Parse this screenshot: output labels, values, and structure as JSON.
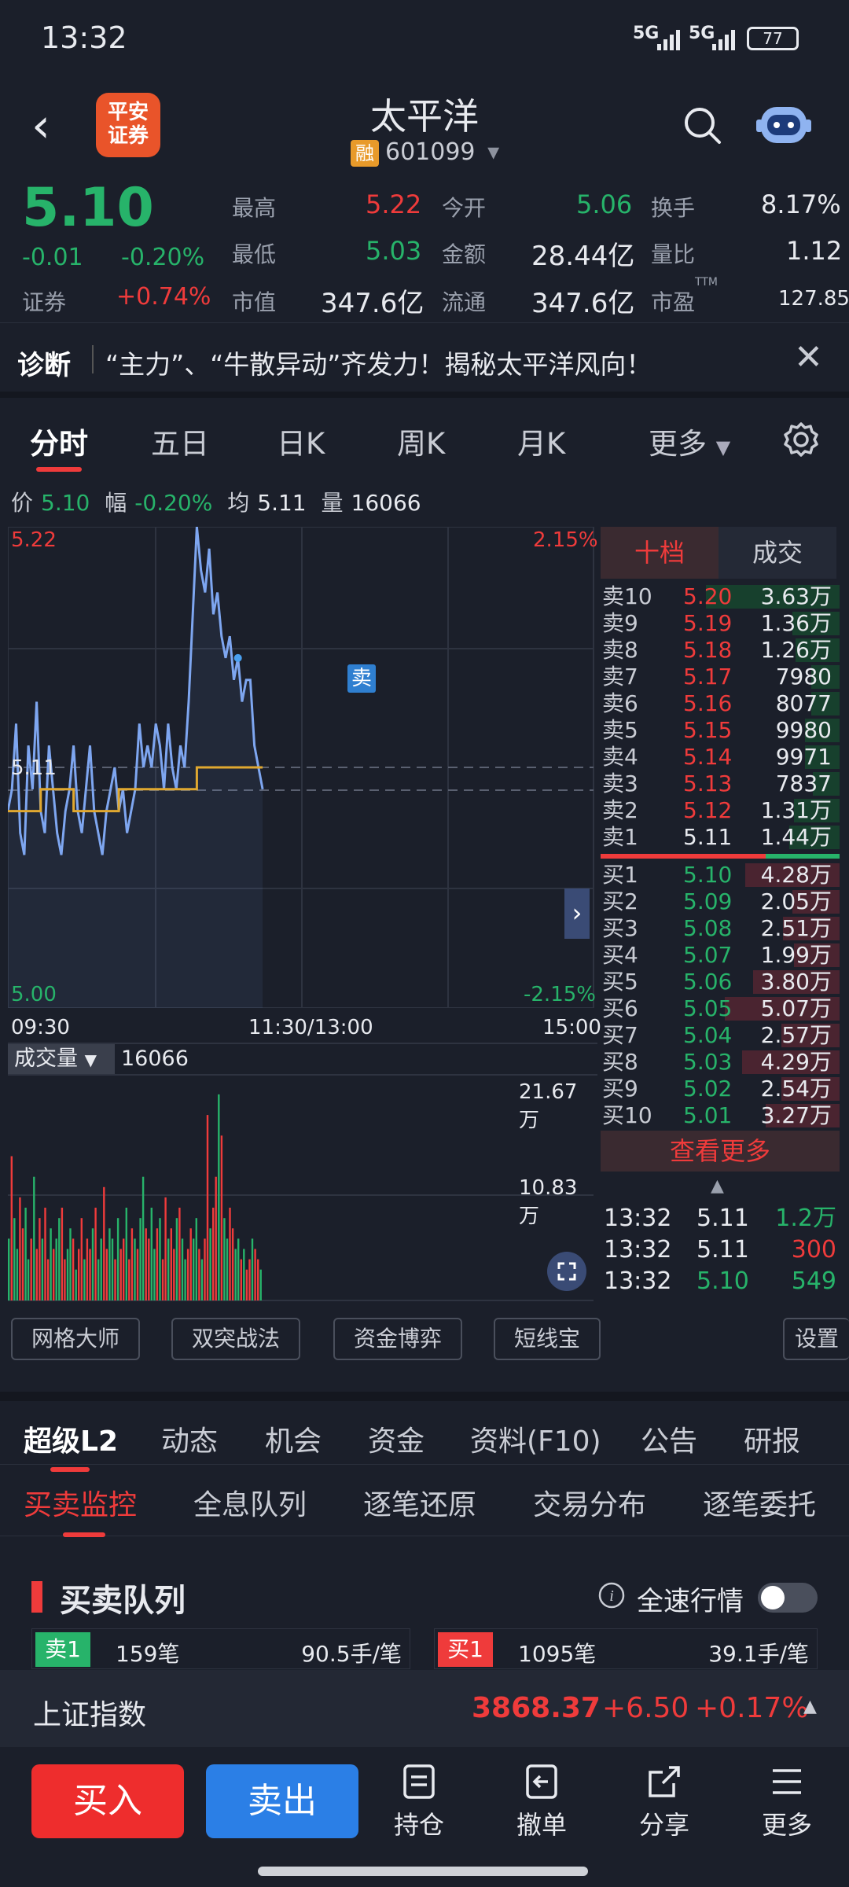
{
  "status": {
    "time": "13:32",
    "sig1": "5G",
    "sig2": "5G",
    "battery": "77"
  },
  "header": {
    "back": "‹",
    "broker_logo": "平安\n证券",
    "title": "太平洋",
    "margin_tag": "融",
    "code": "601099",
    "dropdown": "▾"
  },
  "quote": {
    "price": "5.10",
    "change": "-0.01",
    "change_pct": "-0.20%",
    "sector_label": "证券",
    "sector_pct": "+0.74%",
    "high_label": "最高",
    "high": "5.22",
    "open_label": "今开",
    "open": "5.06",
    "turnover_label": "换手",
    "turnover": "8.17%",
    "low_label": "最低",
    "low": "5.03",
    "amount_label": "金额",
    "amount": "28.44亿",
    "vol_ratio_label": "量比",
    "vol_ratio": "1.12",
    "mktcap_label": "市值",
    "mktcap": "347.6亿",
    "float_label": "流通",
    "float": "347.6亿",
    "pe_label": "市盈",
    "pe_sup": "TTM",
    "pe": "127.85"
  },
  "diag": {
    "label": "诊断",
    "text": "“主力”、“牛散异动”齐发力！揭秘太平洋风向！",
    "close": "✕"
  },
  "tabs": [
    "分时",
    "五日",
    "日K",
    "周K",
    "月K",
    "更多"
  ],
  "info": {
    "price_label": "价",
    "price": "5.10",
    "range_label": "幅",
    "range": "-0.20%",
    "avg_label": "均",
    "avg": "5.11",
    "vol_label": "量",
    "vol": "16066"
  },
  "chart": {
    "ymax": "5.22",
    "ymin": "5.00",
    "ymid": "5.11",
    "pct_max": "2.15%",
    "pct_min": "-2.15%",
    "t_start": "09:30",
    "t_mid": "11:30/13:00",
    "t_end": "15:00",
    "sell_marker": "卖",
    "vol_label": "成交量",
    "vol_value": "16066",
    "vol_max": "21.67万",
    "vol_mid": "10.83万",
    "colors": {
      "price": "#7ea6f0",
      "avg": "#e0a830",
      "up": "#ef3b3b",
      "down": "#27b36a"
    }
  },
  "chart_data": {
    "type": "line",
    "x_range": [
      "09:30",
      "15:00"
    ],
    "ylim": [
      5.0,
      5.22
    ],
    "series": [
      {
        "name": "价",
        "values": [
          5.09,
          5.1,
          5.13,
          5.08,
          5.07,
          5.12,
          5.1,
          5.14,
          5.09,
          5.08,
          5.12,
          5.1,
          5.08,
          5.07,
          5.09,
          5.1,
          5.12,
          5.09,
          5.08,
          5.1,
          5.12,
          5.09,
          5.08,
          5.07,
          5.09,
          5.1,
          5.11,
          5.09,
          5.1,
          5.08,
          5.09,
          5.1,
          5.13,
          5.11,
          5.12,
          5.11,
          5.13,
          5.12,
          5.1,
          5.13,
          5.11,
          5.1,
          5.12,
          5.11,
          5.14,
          5.18,
          5.22,
          5.2,
          5.19,
          5.21,
          5.18,
          5.19,
          5.17,
          5.16,
          5.17,
          5.15,
          5.16,
          5.14,
          5.15,
          5.15,
          5.12,
          5.11,
          5.1
        ]
      },
      {
        "name": "均",
        "values": [
          5.09,
          5.09,
          5.09,
          5.09,
          5.09,
          5.09,
          5.09,
          5.09,
          5.1,
          5.1,
          5.1,
          5.1,
          5.1,
          5.1,
          5.1,
          5.1,
          5.09,
          5.09,
          5.09,
          5.09,
          5.09,
          5.09,
          5.09,
          5.09,
          5.09,
          5.09,
          5.09,
          5.1,
          5.1,
          5.1,
          5.1,
          5.1,
          5.1,
          5.1,
          5.1,
          5.1,
          5.1,
          5.1,
          5.1,
          5.1,
          5.1,
          5.1,
          5.1,
          5.1,
          5.1,
          5.1,
          5.11,
          5.11,
          5.11,
          5.11,
          5.11,
          5.11,
          5.11,
          5.11,
          5.11,
          5.11,
          5.11,
          5.11,
          5.11,
          5.11,
          5.11,
          5.11,
          5.11
        ]
      }
    ],
    "volume": [
      6,
      14,
      8,
      5,
      10,
      7,
      9,
      4,
      6,
      12,
      5,
      8,
      6,
      9,
      4,
      7,
      5,
      6,
      8,
      9,
      4,
      5,
      7,
      6,
      3,
      5,
      8,
      4,
      6,
      5,
      7,
      9,
      4,
      6,
      11,
      5,
      7,
      6,
      4,
      8,
      5,
      6,
      9,
      4,
      7,
      6,
      5,
      8,
      12,
      7,
      6,
      9,
      5,
      7,
      8,
      4,
      10,
      6,
      7,
      5,
      8,
      9,
      6,
      4,
      5,
      7,
      6,
      8,
      5,
      4,
      6,
      18,
      7,
      9,
      12,
      20,
      16,
      8,
      6,
      9,
      7,
      5,
      6,
      4,
      5,
      3,
      4,
      6,
      5,
      4,
      3
    ]
  },
  "book": {
    "tab_active": "十档",
    "tab_other": "成交",
    "asks": [
      {
        "label": "卖10",
        "price": "5.20",
        "vol": "3.63万",
        "frac": 0.85
      },
      {
        "label": "卖9",
        "price": "5.19",
        "vol": "1.36万",
        "frac": 0.3
      },
      {
        "label": "卖8",
        "price": "5.18",
        "vol": "1.26万",
        "frac": 0.28
      },
      {
        "label": "卖7",
        "price": "5.17",
        "vol": "7980",
        "frac": 0.18
      },
      {
        "label": "卖6",
        "price": "5.16",
        "vol": "8077",
        "frac": 0.18
      },
      {
        "label": "卖5",
        "price": "5.15",
        "vol": "9980",
        "frac": 0.22
      },
      {
        "label": "卖4",
        "price": "5.14",
        "vol": "9971",
        "frac": 0.22
      },
      {
        "label": "卖3",
        "price": "5.13",
        "vol": "7837",
        "frac": 0.17
      },
      {
        "label": "卖2",
        "price": "5.12",
        "vol": "1.31万",
        "frac": 0.29
      },
      {
        "label": "卖1",
        "price": "5.11",
        "vol": "1.44万",
        "frac": 0.32
      }
    ],
    "bids": [
      {
        "label": "买1",
        "price": "5.10",
        "vol": "4.28万",
        "frac": 0.6
      },
      {
        "label": "买2",
        "price": "5.09",
        "vol": "2.05万",
        "frac": 0.3
      },
      {
        "label": "买3",
        "price": "5.08",
        "vol": "2.51万",
        "frac": 0.36
      },
      {
        "label": "买4",
        "price": "5.07",
        "vol": "1.99万",
        "frac": 0.29
      },
      {
        "label": "买5",
        "price": "5.06",
        "vol": "3.80万",
        "frac": 0.55
      },
      {
        "label": "买6",
        "price": "5.05",
        "vol": "5.07万",
        "frac": 0.73
      },
      {
        "label": "买7",
        "price": "5.04",
        "vol": "2.57万",
        "frac": 0.37
      },
      {
        "label": "买8",
        "price": "5.03",
        "vol": "4.29万",
        "frac": 0.62
      },
      {
        "label": "买9",
        "price": "5.02",
        "vol": "2.54万",
        "frac": 0.37
      },
      {
        "label": "买10",
        "price": "5.01",
        "vol": "3.27万",
        "frac": 0.47
      }
    ],
    "more": "查看更多",
    "trades": [
      {
        "time": "13:32",
        "price": "5.11",
        "vol": "1.2万",
        "vol_color": "green"
      },
      {
        "time": "13:32",
        "price": "5.11",
        "vol": "300",
        "vol_color": "red"
      },
      {
        "time": "13:32",
        "price": "5.10",
        "vol": "549",
        "vol_color": "green"
      }
    ]
  },
  "tools": [
    "网格大师",
    "双突战法",
    "资金博弈",
    "短线宝",
    "设置"
  ],
  "lower_tabs": [
    "超级L2",
    "动态",
    "机会",
    "资金",
    "资料(F10)",
    "公告",
    "研报"
  ],
  "sub_tabs": [
    "买卖监控",
    "全息队列",
    "逐笔还原",
    "交易分布",
    "逐笔委托"
  ],
  "queue": {
    "title": "买卖队列",
    "fast_label": "全速行情",
    "left": {
      "tag": "卖1",
      "count": "159笔",
      "avg": "90.5手/笔"
    },
    "right": {
      "tag": "买1",
      "count": "1095笔",
      "avg": "39.1手/笔"
    }
  },
  "index": {
    "name": "上证指数",
    "value": "3868.37",
    "change": "+6.50",
    "pct": "+0.17%"
  },
  "bottom": {
    "buy": "买入",
    "sell": "卖出",
    "positions": "持仓",
    "cancel": "撤单",
    "share": "分享",
    "more": "更多"
  }
}
